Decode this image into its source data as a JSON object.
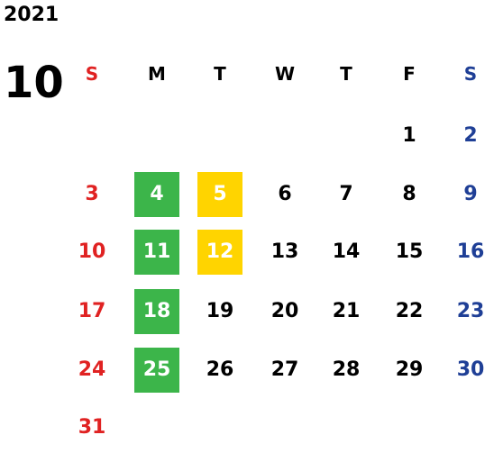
{
  "calendar": {
    "year": "2021",
    "month": "10",
    "weekdays": [
      "S",
      "M",
      "T",
      "W",
      "T",
      "F",
      "S"
    ],
    "weeks": [
      [
        "",
        "",
        "",
        "",
        "",
        "1",
        "2"
      ],
      [
        "3",
        "4",
        "5",
        "6",
        "7",
        "8",
        "9"
      ],
      [
        "10",
        "11",
        "12",
        "13",
        "14",
        "15",
        "16"
      ],
      [
        "17",
        "18",
        "19",
        "20",
        "21",
        "22",
        "23"
      ],
      [
        "24",
        "25",
        "26",
        "27",
        "28",
        "29",
        "30"
      ],
      [
        "31",
        "",
        "",
        "",
        "",
        "",
        ""
      ]
    ],
    "highlights": {
      "green": [
        "4",
        "11",
        "18",
        "25"
      ],
      "yellow": [
        "5",
        "12"
      ]
    }
  },
  "colors": {
    "sunday": "#e02222",
    "saturday": "#1f3f96",
    "weekday": "#000000",
    "highlight_green": "#3cb54a",
    "highlight_yellow": "#ffd400",
    "highlight_text": "#ffffff"
  }
}
